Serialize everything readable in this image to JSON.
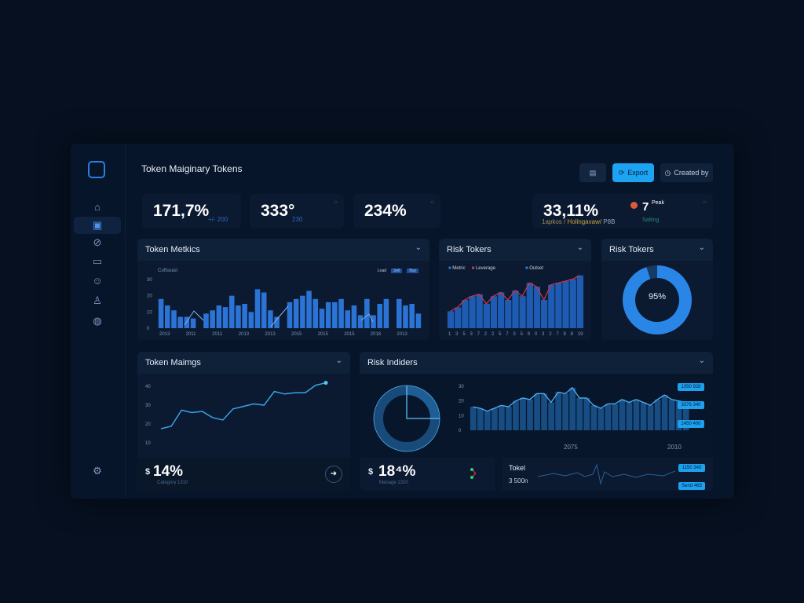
{
  "header": {
    "title": "Token Maiginary Tokens",
    "buttons": [
      {
        "label": "",
        "icon": "save-icon"
      },
      {
        "label": "Export",
        "icon": "refresh-icon"
      },
      {
        "label": "Created by",
        "icon": "clock-icon"
      }
    ]
  },
  "sidebar": {
    "items": [
      {
        "icon": "home-icon"
      },
      {
        "icon": "wallet-icon",
        "active": true
      },
      {
        "icon": "link-icon"
      },
      {
        "icon": "monitor-icon"
      },
      {
        "icon": "smile-icon"
      },
      {
        "icon": "user-icon"
      },
      {
        "icon": "globe-icon"
      }
    ],
    "settings_icon": "settings-icon"
  },
  "kpis": [
    {
      "value": "171,7%",
      "sub": "+/- 200"
    },
    {
      "value": "333°",
      "sub": "230"
    },
    {
      "value": "234%",
      "sub": ""
    },
    {
      "value": "33,11%",
      "sub_a": "1apkos /",
      "sub_b": "Holingavaw/",
      "sub_c": "P8B",
      "side_value": "7",
      "side_sup": "Peak",
      "side_sub": "Salting"
    }
  ],
  "token_metrics": {
    "title": "Token Metkics",
    "caption": "Cuftsoasl",
    "legend": [
      "Load",
      "Sell",
      "Buy"
    ]
  },
  "risk_tokens": {
    "title": "Risk Tokers",
    "legend": [
      "Metric",
      "Leverage",
      "Outset"
    ]
  },
  "risk_donut": {
    "title": "Risk Tokers",
    "value_label": "95%"
  },
  "token_mainigs": {
    "title": "Token Maimgs",
    "footer_value": "14%",
    "footer_prefix": "$",
    "footer_sub": "Category 1310"
  },
  "risk_indicators": {
    "title": "Risk Indiders",
    "footer_value": "18⁴%",
    "footer_prefix": "$",
    "footer_sub": "Manage 1320",
    "total_label": "Tokel",
    "total_value": "3 500n",
    "badges": [
      "1050 928",
      "3376 340",
      "2450 400",
      "1150 340",
      "Send 465"
    ]
  },
  "chart_data": [
    {
      "type": "bar",
      "title": "Token Metkics",
      "ylim": [
        0,
        30
      ],
      "yticks": [
        "30",
        "20",
        "10",
        "0"
      ],
      "xticks": [
        "2013",
        "2011",
        "2011",
        "2013",
        "2013",
        "2015",
        "2015",
        "2015",
        "2018",
        "2013"
      ],
      "values": [
        18,
        14,
        11,
        7,
        7,
        6,
        0,
        9,
        11,
        14,
        13,
        20,
        14,
        15,
        10,
        24,
        22,
        11,
        7,
        0,
        16,
        18,
        20,
        23,
        18,
        12,
        16,
        16,
        18,
        11,
        14,
        8,
        18,
        8,
        15,
        18,
        0,
        18,
        14,
        15,
        9
      ]
    },
    {
      "type": "bar",
      "title": "Risk Tokers",
      "ylim": [
        0,
        30
      ],
      "xticks": [
        "1",
        "3",
        "5",
        "3",
        "7",
        "2",
        "2",
        "5",
        "7",
        "3",
        "5",
        "9",
        "0",
        "3",
        "2",
        "7",
        "8",
        "8",
        "19"
      ],
      "values": [
        9,
        11,
        15,
        17,
        18,
        13,
        17,
        19,
        15,
        20,
        17,
        24,
        22,
        15,
        23,
        24,
        25,
        26,
        28
      ]
    },
    {
      "type": "line",
      "title": "Token Maimgs",
      "ylim": [
        0,
        50
      ],
      "yticks": [
        "40",
        "30",
        "20",
        "10"
      ],
      "values": [
        12,
        14,
        27,
        25,
        26,
        21,
        19,
        28,
        30,
        32,
        31,
        42,
        40,
        41,
        41,
        47,
        49
      ]
    },
    {
      "type": "pie",
      "title": "Risk Tokers",
      "values": [
        95,
        5
      ]
    },
    {
      "type": "pie",
      "title": "Risk Indiders",
      "values": [
        25,
        75
      ]
    },
    {
      "type": "bar",
      "title": "Risk Indiders",
      "ylim": [
        0,
        30
      ],
      "yticks": [
        "30",
        "20",
        "10",
        "0"
      ],
      "xlabels": [
        "2075",
        "2010"
      ],
      "values": [
        16,
        15,
        13,
        15,
        17,
        16,
        20,
        22,
        21,
        25,
        25,
        19,
        26,
        25,
        29,
        22,
        22,
        17,
        15,
        18,
        18,
        21,
        19,
        21,
        19,
        17,
        21,
        24,
        21,
        20,
        19
      ]
    }
  ]
}
